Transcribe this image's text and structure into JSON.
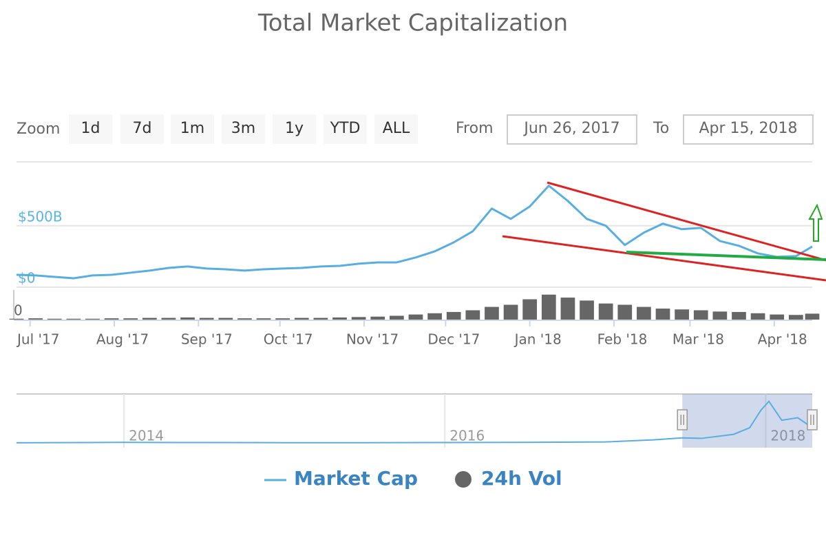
{
  "chart_data": {
    "type": "line",
    "title": "Total Market Capitalization",
    "range_selector": {
      "zoom_label": "Zoom",
      "buttons": [
        "1d",
        "7d",
        "1m",
        "3m",
        "1y",
        "YTD",
        "ALL"
      ],
      "from_label": "From",
      "from": "Jun 26, 2017",
      "to_label": "To",
      "to": "Apr 15, 2018"
    },
    "x": [
      0,
      7,
      14,
      21,
      28,
      35,
      42,
      49,
      56,
      63,
      70,
      77,
      84,
      91,
      98,
      105,
      112,
      119,
      126,
      133,
      140,
      147,
      154,
      161,
      168,
      175,
      182,
      189,
      196,
      203,
      210,
      217,
      224,
      231,
      238,
      245,
      252,
      259,
      266,
      273,
      280,
      287,
      293
    ],
    "xlim": [
      0,
      293
    ],
    "xticks": [
      {
        "value": 5,
        "label": "Jul '17"
      },
      {
        "value": 36,
        "label": "Aug '17"
      },
      {
        "value": 67,
        "label": "Sep '17"
      },
      {
        "value": 97,
        "label": "Oct '17"
      },
      {
        "value": 128,
        "label": "Nov '17"
      },
      {
        "value": 158,
        "label": "Dec '17"
      },
      {
        "value": 189,
        "label": "Jan '18"
      },
      {
        "value": 220,
        "label": "Feb '18"
      },
      {
        "value": 248,
        "label": "Mar '18"
      },
      {
        "value": 279,
        "label": "Apr '18"
      }
    ],
    "ylim": [
      0,
      1020
    ],
    "yticks": [
      {
        "value": 0,
        "label": "$0"
      },
      {
        "value": 500,
        "label": "$500B"
      }
    ],
    "y2lim": [
      0,
      70
    ],
    "y2ticks": [
      0
    ],
    "grid": true,
    "series": [
      {
        "name": "Market Cap",
        "color": "#58ade1",
        "values": [
          101,
          96,
          84,
          73,
          96,
          101,
          118,
          135,
          157,
          169,
          152,
          146,
          135,
          146,
          152,
          157,
          169,
          174,
          191,
          202,
          202,
          242,
          292,
          365,
          455,
          640,
          556,
          657,
          826,
          702,
          556,
          500,
          343,
          444,
          517,
          472,
          483,
          376,
          337,
          275,
          247,
          253,
          331
        ]
      },
      {
        "name": "24h Vol",
        "color": "#666666",
        "axis": "y2",
        "type": "column",
        "values": [
          2,
          3,
          2,
          2,
          2,
          3,
          3,
          4,
          4,
          5,
          4,
          4,
          3,
          3,
          3,
          4,
          4,
          5,
          6,
          7,
          9,
          12,
          15,
          18,
          22,
          30,
          35,
          48,
          59,
          52,
          45,
          38,
          35,
          30,
          26,
          24,
          22,
          19,
          18,
          15,
          12,
          11,
          14
        ]
      }
    ],
    "navigator": {
      "color": "#58ade1",
      "x": [
        2013.33,
        2014.0,
        2014.5,
        2015.0,
        2015.5,
        2016.0,
        2016.5,
        2017.0,
        2017.3,
        2017.48,
        2017.6,
        2017.8,
        2017.9,
        2017.97,
        2018.02,
        2018.1,
        2018.2,
        2018.29
      ],
      "values": [
        2,
        10,
        6,
        4,
        4,
        7,
        10,
        18,
        60,
        100,
        90,
        170,
        300,
        650,
        826,
        450,
        500,
        300
      ],
      "xlim": [
        2013.33,
        2018.29
      ],
      "ylim": [
        0,
        1000
      ],
      "xticks": [
        2014,
        2016,
        2018
      ],
      "selected": [
        2017.48,
        2018.29
      ]
    },
    "legend": "bottom"
  }
}
